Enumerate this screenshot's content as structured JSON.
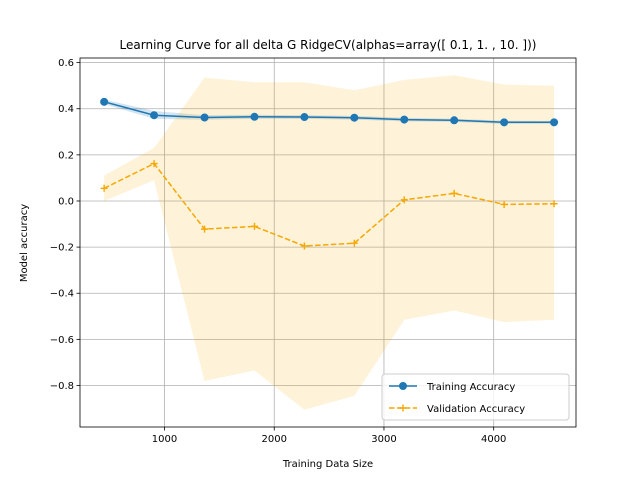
{
  "chart_data": {
    "type": "line",
    "title": "Learning Curve for all delta G RidgeCV(alphas=array([ 0.1,  1. , 10. ]))",
    "xlabel": "Training Data Size",
    "ylabel": "Model accuracy",
    "xlim": [
      230,
      4750
    ],
    "ylim": [
      -0.98,
      0.62
    ],
    "xticks": [
      1000,
      2000,
      3000,
      4000
    ],
    "xtick_labels": [
      "1000",
      "2000",
      "3000",
      "4000"
    ],
    "yticks": [
      -0.8,
      -0.6,
      -0.4,
      -0.2,
      0.0,
      0.2,
      0.4,
      0.6
    ],
    "ytick_labels": [
      "−0.8",
      "−0.6",
      "−0.4",
      "−0.2",
      "0.0",
      "0.2",
      "0.4",
      "0.6"
    ],
    "grid": true,
    "legend_position": "bottom-right",
    "x": [
      450,
      905,
      1365,
      1820,
      2275,
      2730,
      3185,
      3640,
      4095,
      4550
    ],
    "series": [
      {
        "name": "Training Accuracy",
        "color": "#1f77b4",
        "line_style": "solid",
        "marker": "circle",
        "values": [
          0.43,
          0.372,
          0.362,
          0.365,
          0.364,
          0.361,
          0.353,
          0.35,
          0.341,
          0.341
        ],
        "band_upper": [
          0.44,
          0.39,
          0.372,
          0.374,
          0.372,
          0.369,
          0.361,
          0.357,
          0.348,
          0.347
        ],
        "band_lower": [
          0.42,
          0.356,
          0.352,
          0.356,
          0.356,
          0.353,
          0.345,
          0.343,
          0.334,
          0.335
        ],
        "band_color": "#1f77b4"
      },
      {
        "name": "Validation Accuracy",
        "color": "#f5a800",
        "line_style": "dashed",
        "marker": "plus",
        "values": [
          0.055,
          0.162,
          -0.122,
          -0.11,
          -0.195,
          -0.183,
          0.005,
          0.033,
          -0.015,
          -0.012
        ],
        "band_upper": [
          0.11,
          0.23,
          0.535,
          0.515,
          0.515,
          0.48,
          0.525,
          0.545,
          0.505,
          0.5
        ],
        "band_lower": [
          0.0,
          0.09,
          -0.78,
          -0.735,
          -0.905,
          -0.845,
          -0.515,
          -0.475,
          -0.525,
          -0.515
        ],
        "band_color": "#f5a800"
      }
    ]
  }
}
